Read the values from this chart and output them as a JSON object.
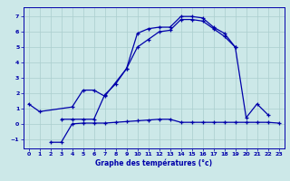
{
  "title": "Graphe des températures (°c)",
  "bg_color": "#cce8e8",
  "grid_color": "#aacece",
  "line_color": "#0000aa",
  "xlim": [
    -0.5,
    23.5
  ],
  "ylim": [
    -1.6,
    7.6
  ],
  "yticks": [
    -1,
    0,
    1,
    2,
    3,
    4,
    5,
    6,
    7
  ],
  "xticks": [
    0,
    1,
    2,
    3,
    4,
    5,
    6,
    7,
    8,
    9,
    10,
    11,
    12,
    13,
    14,
    15,
    16,
    17,
    18,
    19,
    20,
    21,
    22,
    23
  ],
  "curve1_x": [
    0,
    1,
    4,
    5,
    6,
    7,
    9,
    10,
    11,
    12,
    13,
    14,
    15,
    16,
    17,
    18,
    19
  ],
  "curve1_y": [
    1.3,
    0.8,
    1.1,
    2.2,
    2.2,
    1.8,
    3.6,
    5.9,
    6.2,
    6.3,
    6.3,
    7.0,
    7.0,
    6.9,
    6.3,
    5.9,
    5.0
  ],
  "curve2_x": [
    3,
    4,
    5,
    6,
    7,
    8,
    9,
    10,
    11,
    12,
    13,
    14,
    15,
    16,
    17,
    18,
    19,
    20,
    21,
    22
  ],
  "curve2_y": [
    0.3,
    0.3,
    0.3,
    0.3,
    1.9,
    2.6,
    3.6,
    5.0,
    5.5,
    6.0,
    6.1,
    6.8,
    6.8,
    6.7,
    6.2,
    5.7,
    5.0,
    0.4,
    1.3,
    0.6
  ],
  "curve3_x": [
    2,
    3,
    4,
    5,
    6,
    7,
    8,
    9,
    10,
    11,
    12,
    13,
    14,
    15,
    16,
    17,
    18,
    19,
    20,
    21,
    22,
    23
  ],
  "curve3_y": [
    -1.2,
    -1.2,
    0.0,
    0.05,
    0.05,
    0.05,
    0.1,
    0.15,
    0.2,
    0.25,
    0.3,
    0.3,
    0.1,
    0.1,
    0.1,
    0.1,
    0.1,
    0.1,
    0.1,
    0.1,
    0.1,
    0.05
  ]
}
